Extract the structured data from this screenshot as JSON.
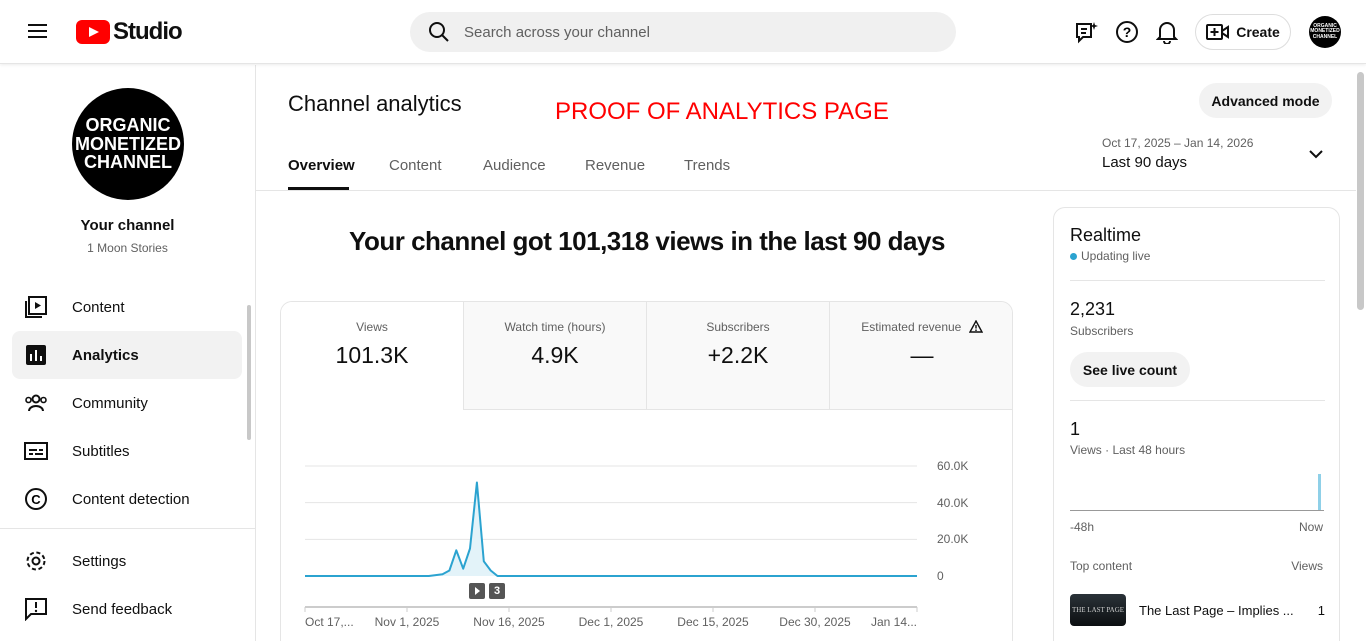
{
  "header": {
    "logo_text": "Studio",
    "search_placeholder": "Search across your channel",
    "create_label": "Create",
    "avatar_text": "ORGANIC MONETIZED CHANNEL"
  },
  "sidebar": {
    "channel_avatar_text": "ORGANIC MONETIZED CHANNEL",
    "channel_title": "Your channel",
    "channel_name": "1 Moon Stories",
    "items": [
      {
        "label": "Content",
        "icon": "content-icon"
      },
      {
        "label": "Analytics",
        "icon": "analytics-icon",
        "active": true
      },
      {
        "label": "Community",
        "icon": "community-icon"
      },
      {
        "label": "Subtitles",
        "icon": "subtitles-icon"
      },
      {
        "label": "Content detection",
        "icon": "copyright-icon"
      }
    ],
    "bottom": [
      {
        "label": "Settings",
        "icon": "gear-icon"
      },
      {
        "label": "Send feedback",
        "icon": "feedback-icon"
      }
    ]
  },
  "main": {
    "title": "Channel analytics",
    "overlay_note": "PROOF OF ANALYTICS PAGE",
    "advanced_mode": "Advanced mode",
    "date_range": "Oct 17, 2025 – Jan 14, 2026",
    "date_preset": "Last 90 days",
    "tabs": [
      "Overview",
      "Content",
      "Audience",
      "Revenue",
      "Trends"
    ],
    "headline": "Your channel got 101,318 views in the last 90 days",
    "stats": [
      {
        "label": "Views",
        "value": "101.3K"
      },
      {
        "label": "Watch time (hours)",
        "value": "4.9K"
      },
      {
        "label": "Subscribers",
        "value": "+2.2K"
      },
      {
        "label": "Estimated revenue",
        "value": "—"
      }
    ],
    "marker_count": "3"
  },
  "chart_data": {
    "type": "area",
    "x_ticks": [
      "Oct 17,...",
      "Nov 1, 2025",
      "Nov 16, 2025",
      "Dec 1, 2025",
      "Dec 15, 2025",
      "Dec 30, 2025",
      "Jan 14..."
    ],
    "y_ticks": [
      "60.0K",
      "40.0K",
      "20.0K",
      "0"
    ],
    "ylim": [
      0,
      60000
    ],
    "xlim": [
      "2025-10-17",
      "2026-01-14"
    ],
    "grid": true,
    "color": "#2ba3d0",
    "points": [
      [
        "2025-10-17",
        0
      ],
      [
        "2025-11-04",
        0
      ],
      [
        "2025-11-05",
        500
      ],
      [
        "2025-11-06",
        1000
      ],
      [
        "2025-11-07",
        3000
      ],
      [
        "2025-11-08",
        14000
      ],
      [
        "2025-11-09",
        4000
      ],
      [
        "2025-11-10",
        15000
      ],
      [
        "2025-11-11",
        51000
      ],
      [
        "2025-11-12",
        8000
      ],
      [
        "2025-11-13",
        3000
      ],
      [
        "2025-11-14",
        0
      ],
      [
        "2026-01-14",
        0
      ]
    ]
  },
  "realtime": {
    "title": "Realtime",
    "status": "Updating live",
    "subs_value": "2,231",
    "subs_label": "Subscribers",
    "live_button": "See live count",
    "views_value": "1",
    "views_label": "Views · Last 48 hours",
    "axis_start": "-48h",
    "axis_end": "Now",
    "top_label": "Top content",
    "top_views_label": "Views",
    "top_items": [
      {
        "title": "The Last Page – Implies ...",
        "views": "1",
        "thumb_text": "THE LAST PAGE"
      }
    ]
  }
}
